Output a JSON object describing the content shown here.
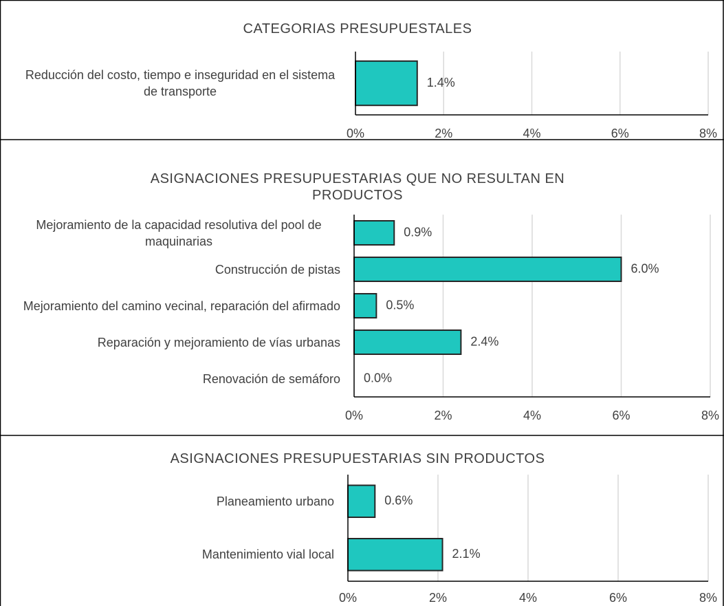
{
  "chart_data": [
    {
      "type": "barh",
      "title": "CATEGORIAS PRESUPUESTALES",
      "categories": [
        "Reducción del costo, tiempo e inseguridad en el sistema de transporte"
      ],
      "values": [
        1.4
      ],
      "value_labels": [
        "1.4%"
      ],
      "color": "#1fc7bf",
      "xlim": [
        0,
        8
      ],
      "xticks": [
        {
          "value": 0,
          "label": "0%"
        },
        {
          "value": 2,
          "label": "2%"
        },
        {
          "value": 4,
          "label": "4%"
        },
        {
          "value": 6,
          "label": "6%"
        },
        {
          "value": 8,
          "label": "8%"
        }
      ],
      "grid": true
    },
    {
      "type": "barh",
      "title": "ASIGNACIONES PRESUPUESTARIAS QUE NO RESULTAN EN PRODUCTOS",
      "categories": [
        "Mejoramiento de la capacidad resolutiva del pool de maquinarias",
        "Construcción de pistas",
        "Mejoramiento del camino vecinal, reparación del afirmado",
        "Reparación y mejoramiento de vías urbanas",
        "Renovación de semáforo"
      ],
      "values": [
        0.9,
        6.0,
        0.5,
        2.4,
        0.0
      ],
      "value_labels": [
        "0.9%",
        "6.0%",
        "0.5%",
        "2.4%",
        "0.0%"
      ],
      "color": "#1fc7bf",
      "xlim": [
        0,
        8
      ],
      "xticks": [
        {
          "value": 0,
          "label": "0%"
        },
        {
          "value": 2,
          "label": "2%"
        },
        {
          "value": 4,
          "label": "4%"
        },
        {
          "value": 6,
          "label": "6%"
        },
        {
          "value": 8,
          "label": "8%"
        }
      ],
      "grid": true
    },
    {
      "type": "barh",
      "title": "ASIGNACIONES PRESUPUESTARIAS SIN PRODUCTOS",
      "categories": [
        "Planeamiento urbano",
        "Mantenimiento vial local"
      ],
      "values": [
        0.6,
        2.1
      ],
      "value_labels": [
        "0.6%",
        "2.1%"
      ],
      "color": "#1fc7bf",
      "xlim": [
        0,
        8
      ],
      "xticks": [
        {
          "value": 0,
          "label": "0%"
        },
        {
          "value": 2,
          "label": "2%"
        },
        {
          "value": 4,
          "label": "4%"
        },
        {
          "value": 6,
          "label": "6%"
        },
        {
          "value": 8,
          "label": "8%"
        }
      ],
      "grid": true
    }
  ]
}
